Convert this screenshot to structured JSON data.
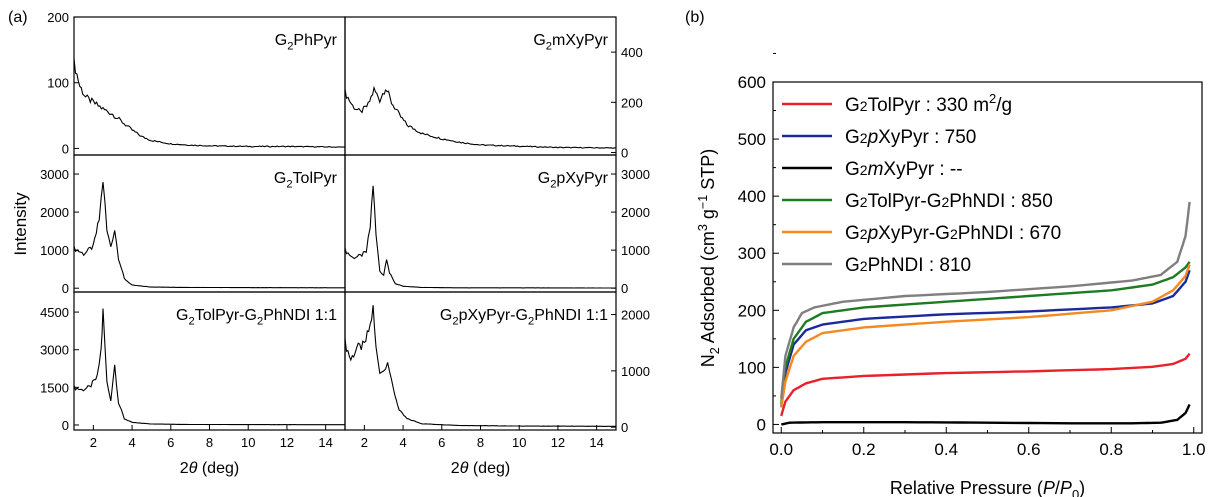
{
  "panel_labels": {
    "a": "(a)",
    "b": "(b)"
  },
  "colors": {
    "red": "#e8212b",
    "blue": "#1b2a9a",
    "black": "#000000",
    "green": "#1f7a23",
    "orange": "#f5891f",
    "gray": "#7f7f7f"
  },
  "chart_data": [
    {
      "type": "line",
      "panel": "a",
      "position": "top-left",
      "title": "G2PhPyr",
      "ylabel": "Intensity",
      "xlabel": "",
      "xlim": [
        1,
        15
      ],
      "ylim": [
        -10,
        200
      ],
      "yticks": [
        "0",
        "100",
        "200"
      ],
      "series": [
        {
          "name": "G2PhPyr",
          "x": [
            1.0,
            1.3,
            1.6,
            2.0,
            2.5,
            3.0,
            3.5,
            4.0,
            4.5,
            5.0,
            6.0,
            7.0,
            8.0,
            10.0,
            12.0,
            15.0
          ],
          "y": [
            130,
            95,
            78,
            70,
            60,
            52,
            40,
            28,
            18,
            12,
            7,
            5,
            4,
            3,
            3,
            2
          ]
        }
      ]
    },
    {
      "type": "line",
      "panel": "a",
      "position": "top-right",
      "title": "G2mXyPyr",
      "xlabel": "",
      "ylabel": "",
      "xlim": [
        1,
        15
      ],
      "ylim": [
        -10,
        540
      ],
      "yticks": [
        "0",
        "200",
        "400"
      ],
      "series": [
        {
          "name": "G2mXyPyr",
          "x": [
            1.0,
            1.4,
            1.8,
            2.2,
            2.5,
            2.8,
            3.1,
            3.4,
            3.8,
            4.2,
            5.0,
            6.0,
            7.0,
            8.0,
            10.0,
            12.0,
            15.0
          ],
          "y": [
            240,
            185,
            160,
            190,
            250,
            210,
            260,
            200,
            150,
            110,
            75,
            55,
            40,
            30,
            25,
            20,
            18
          ]
        }
      ]
    },
    {
      "type": "line",
      "panel": "a",
      "position": "middle-left",
      "title": "G2TolPyr",
      "xlabel": "",
      "ylabel": "Intensity",
      "xlim": [
        1,
        15
      ],
      "ylim": [
        -100,
        3500
      ],
      "yticks": [
        "0",
        "1000",
        "2000",
        "3000"
      ],
      "series": [
        {
          "name": "G2TolPyr",
          "x": [
            1.0,
            1.5,
            2.0,
            2.3,
            2.5,
            2.7,
            2.9,
            3.1,
            3.3,
            3.6,
            4.0,
            5.0,
            7.0,
            10.0,
            15.0
          ],
          "y": [
            1050,
            900,
            1100,
            1800,
            2850,
            1500,
            1100,
            1550,
            800,
            250,
            80,
            30,
            20,
            15,
            10
          ]
        }
      ]
    },
    {
      "type": "line",
      "panel": "a",
      "position": "middle-right",
      "title": "G2pXyPyr",
      "xlabel": "",
      "ylabel": "",
      "xlim": [
        1,
        15
      ],
      "ylim": [
        -100,
        3500
      ],
      "yticks": [
        "0",
        "1000",
        "2000",
        "3000"
      ],
      "series": [
        {
          "name": "G2pXyPyr",
          "x": [
            1.0,
            1.4,
            1.8,
            2.1,
            2.3,
            2.45,
            2.6,
            2.8,
            3.0,
            3.15,
            3.3,
            3.6,
            4.0,
            5.0,
            7.0,
            10.0,
            15.0
          ],
          "y": [
            1000,
            800,
            850,
            950,
            1600,
            2750,
            1400,
            450,
            350,
            800,
            400,
            120,
            50,
            20,
            10,
            10,
            5
          ]
        }
      ]
    },
    {
      "type": "line",
      "panel": "a",
      "position": "bottom-left",
      "title": "G2TolPyr-G2PhNDI 1:1",
      "xlabel": "2θ (deg)",
      "ylabel": "Intensity",
      "xlim": [
        1,
        15
      ],
      "ylim": [
        -200,
        5300
      ],
      "yticks": [
        "0",
        "1500",
        "3000",
        "4500"
      ],
      "xticks": [
        "2",
        "4",
        "6",
        "8",
        "10",
        "12",
        "14"
      ],
      "series": [
        {
          "name": "G2TolPyr-G2PhNDI 1:1",
          "x": [
            1.0,
            1.4,
            1.8,
            2.2,
            2.4,
            2.5,
            2.7,
            2.9,
            3.1,
            3.3,
            3.6,
            4.0,
            5.0,
            7.0,
            10.0,
            15.0
          ],
          "y": [
            1500,
            1400,
            1500,
            1900,
            3000,
            4500,
            1700,
            1000,
            2400,
            900,
            250,
            100,
            40,
            20,
            15,
            10
          ]
        }
      ]
    },
    {
      "type": "line",
      "panel": "a",
      "position": "bottom-right",
      "title": "G2pXyPyr-G2PhNDI 1:1",
      "xlabel": "2θ (deg)",
      "ylabel": "",
      "xlim": [
        1,
        15
      ],
      "ylim": [
        -50,
        2400
      ],
      "yticks": [
        "0",
        "1000",
        "2000"
      ],
      "xticks": [
        "2",
        "4",
        "6",
        "8",
        "10",
        "12",
        "14"
      ],
      "series": [
        {
          "name": "G2pXyPyr-G2PhNDI 1:1",
          "x": [
            1.0,
            1.3,
            1.6,
            2.0,
            2.3,
            2.45,
            2.6,
            2.8,
            3.0,
            3.2,
            3.4,
            3.8,
            4.2,
            5.0,
            7.0,
            10.0,
            15.0
          ],
          "y": [
            1500,
            1200,
            1400,
            1450,
            1800,
            2100,
            1400,
            1000,
            1000,
            1200,
            800,
            300,
            150,
            60,
            30,
            20,
            15
          ]
        }
      ]
    },
    {
      "type": "line",
      "panel": "b",
      "title": "",
      "xlabel": "Relative Pressure (P/P0)",
      "ylabel": "N2 Adsorbed (cm3 g-1 STP)",
      "xlim": [
        -0.02,
        1.02
      ],
      "ylim": [
        -15,
        600
      ],
      "xticks": [
        "0.0",
        "0.2",
        "0.4",
        "0.6",
        "0.8",
        "1.0"
      ],
      "yticks": [
        "0",
        "100",
        "200",
        "300",
        "400",
        "500",
        "600"
      ],
      "legend_position": "top-left",
      "series": [
        {
          "name": "G2TolPyr",
          "legend": "G2TolPyr : 330 m2/g",
          "color": "#e8212b",
          "x": [
            0,
            0.01,
            0.03,
            0.06,
            0.1,
            0.2,
            0.4,
            0.6,
            0.8,
            0.9,
            0.95,
            0.98,
            0.99
          ],
          "y": [
            15,
            40,
            60,
            72,
            80,
            85,
            90,
            93,
            97,
            101,
            106,
            115,
            124
          ]
        },
        {
          "name": "G2pXyPyr",
          "legend": "G2pXyPyr : 750",
          "color": "#1b2a9a",
          "x": [
            0,
            0.01,
            0.03,
            0.06,
            0.1,
            0.2,
            0.4,
            0.6,
            0.8,
            0.9,
            0.95,
            0.98,
            0.99
          ],
          "y": [
            30,
            90,
            140,
            165,
            175,
            185,
            193,
            198,
            205,
            212,
            225,
            250,
            270
          ]
        },
        {
          "name": "G2mXyPyr",
          "legend": "G2mXyPyr : --",
          "color": "#000000",
          "x": [
            0,
            0.02,
            0.1,
            0.3,
            0.5,
            0.7,
            0.85,
            0.92,
            0.96,
            0.98,
            0.99
          ],
          "y": [
            0,
            3,
            4,
            4,
            3,
            2,
            2,
            3,
            8,
            20,
            35
          ]
        },
        {
          "name": "G2TolPyr-G2PhNDI",
          "legend": "G2TolPyr-G2PhNDI : 850",
          "color": "#1f7a23",
          "x": [
            0,
            0.01,
            0.03,
            0.06,
            0.1,
            0.2,
            0.4,
            0.6,
            0.8,
            0.9,
            0.95,
            0.98,
            0.99
          ],
          "y": [
            35,
            100,
            150,
            180,
            195,
            205,
            215,
            225,
            235,
            245,
            258,
            275,
            285
          ]
        },
        {
          "name": "G2pXyPyr-G2PhNDI",
          "legend": "G2pXyPyr-G2PhNDI : 670",
          "color": "#f5891f",
          "x": [
            0,
            0.01,
            0.03,
            0.06,
            0.1,
            0.2,
            0.4,
            0.6,
            0.8,
            0.9,
            0.95,
            0.98,
            0.99
          ],
          "y": [
            30,
            75,
            120,
            145,
            160,
            170,
            180,
            188,
            200,
            215,
            235,
            260,
            280
          ]
        },
        {
          "name": "G2PhNDI",
          "legend": "G2PhNDI : 810",
          "color": "#7f7f7f",
          "x": [
            0,
            0.01,
            0.03,
            0.05,
            0.08,
            0.15,
            0.3,
            0.5,
            0.7,
            0.85,
            0.92,
            0.96,
            0.98,
            0.99
          ],
          "y": [
            45,
            120,
            170,
            195,
            205,
            215,
            225,
            232,
            242,
            252,
            262,
            285,
            330,
            390
          ]
        }
      ]
    }
  ]
}
